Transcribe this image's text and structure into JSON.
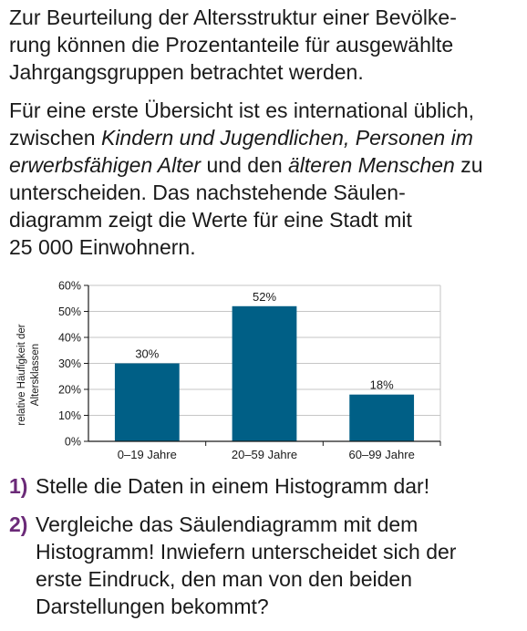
{
  "intro": {
    "para1_lines": [
      "Zur Beurteilung der Altersstruktur einer Bevölke-",
      "rung können die Prozentanteile für ausgewählte",
      "Jahrgangsgruppen betrachtet werden."
    ],
    "para2": {
      "l1": "Für eine erste Übersicht ist es international üblich,",
      "l2_a": "zwischen ",
      "l2_b": "Kindern und Jugendlichen, Personen im",
      "l3_a": "erwerbsfähigen Alter",
      "l3_b": " und den ",
      "l3_c": "älteren Menschen",
      "l3_d": " zu",
      "l4": "unterscheiden. Das nachstehende Säulen-",
      "l5": "diagramm zeigt die Werte für eine Stadt mit",
      "l6": "25 000 Einwohnern."
    }
  },
  "chart_data": {
    "type": "bar",
    "categories": [
      "0–19 Jahre",
      "20–59 Jahre",
      "60–99 Jahre"
    ],
    "values": [
      30,
      52,
      18
    ],
    "value_labels": [
      "30%",
      "52%",
      "18%"
    ],
    "yticks": [
      "0%",
      "10%",
      "20%",
      "30%",
      "40%",
      "50%",
      "60%"
    ],
    "ylim": [
      0,
      60
    ],
    "ylabel_lines": [
      "relative Häufigkeit der",
      "Altersklassen"
    ],
    "xlabel": "",
    "grid": true,
    "bar_color": "#005f86"
  },
  "tasks": [
    {
      "num": "1)",
      "lines": [
        "Stelle die Daten in einem Histogramm dar!"
      ]
    },
    {
      "num": "2)",
      "lines": [
        "Vergleiche das Säulendiagramm mit dem",
        "Histogramm! Inwiefern unterscheidet sich der",
        "erste Eindruck, den man von den beiden",
        "Darstellungen bekommt?"
      ]
    }
  ]
}
